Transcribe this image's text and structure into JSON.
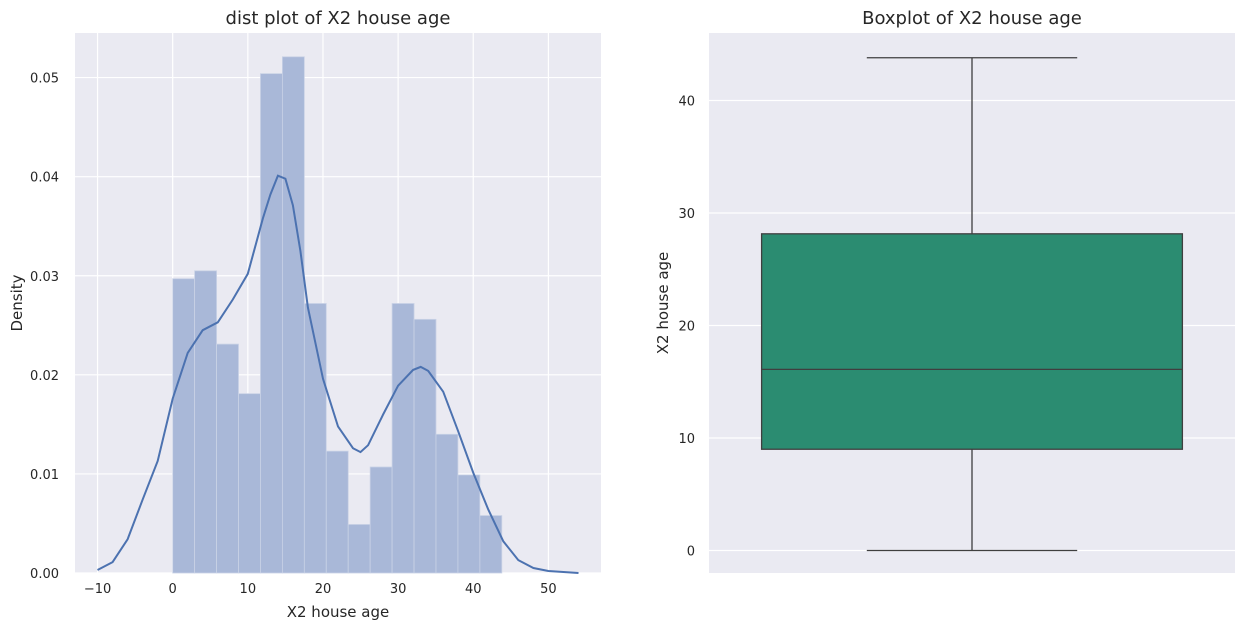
{
  "chart_data": [
    {
      "type": "histogram",
      "title": "dist plot of X2 house age",
      "xlabel": "X2 house age",
      "ylabel": "Density",
      "xlim": [
        -13,
        57
      ],
      "ylim": [
        0,
        0.0545
      ],
      "xticks": [
        -10,
        0,
        10,
        20,
        30,
        40,
        50
      ],
      "yticks": [
        0.0,
        0.01,
        0.02,
        0.03,
        0.04,
        0.05
      ],
      "ytick_labels": [
        "0.00",
        "0.01",
        "0.02",
        "0.03",
        "0.04",
        "0.05"
      ],
      "xtick_labels": [
        "−10",
        "0",
        "10",
        "20",
        "30",
        "40",
        "50"
      ],
      "grid": true,
      "bar_color": "#a9b8d8",
      "kde_color": "#4c72b0",
      "bins": [
        {
          "x0": 0.0,
          "x1": 2.92,
          "density": 0.0297
        },
        {
          "x0": 2.92,
          "x1": 5.84,
          "density": 0.0305
        },
        {
          "x0": 5.84,
          "x1": 8.76,
          "density": 0.0231
        },
        {
          "x0": 8.76,
          "x1": 11.68,
          "density": 0.0181
        },
        {
          "x0": 11.68,
          "x1": 14.6,
          "density": 0.0504
        },
        {
          "x0": 14.6,
          "x1": 17.52,
          "density": 0.0521
        },
        {
          "x0": 17.52,
          "x1": 20.44,
          "density": 0.0272
        },
        {
          "x0": 20.44,
          "x1": 23.36,
          "density": 0.0123
        },
        {
          "x0": 23.36,
          "x1": 26.28,
          "density": 0.0049
        },
        {
          "x0": 26.28,
          "x1": 29.2,
          "density": 0.0107
        },
        {
          "x0": 29.2,
          "x1": 32.12,
          "density": 0.0272
        },
        {
          "x0": 32.12,
          "x1": 35.04,
          "density": 0.0256
        },
        {
          "x0": 35.04,
          "x1": 37.96,
          "density": 0.014
        },
        {
          "x0": 37.96,
          "x1": 40.88,
          "density": 0.0099
        },
        {
          "x0": 40.88,
          "x1": 43.8,
          "density": 0.0058
        }
      ],
      "kde": {
        "x": [
          -10,
          -8,
          -6,
          -4,
          -2,
          0,
          2,
          4,
          6,
          8,
          10,
          12,
          13,
          14,
          15,
          16,
          17,
          18,
          20,
          22,
          24,
          25,
          26,
          28,
          30,
          32,
          33,
          34,
          36,
          38,
          40,
          42,
          44,
          46,
          48,
          50,
          52,
          54
        ],
        "y": [
          0.0003,
          0.0011,
          0.0034,
          0.0074,
          0.0113,
          0.0176,
          0.0222,
          0.0245,
          0.0253,
          0.0276,
          0.0302,
          0.0358,
          0.0382,
          0.0401,
          0.0398,
          0.0371,
          0.0325,
          0.0268,
          0.0196,
          0.0148,
          0.0126,
          0.0122,
          0.0129,
          0.016,
          0.0189,
          0.0205,
          0.0208,
          0.0204,
          0.0183,
          0.0143,
          0.0101,
          0.0064,
          0.0032,
          0.0013,
          0.0005,
          0.0002,
          0.0001,
          0.0
        ]
      }
    },
    {
      "type": "boxplot",
      "title": "Boxplot of X2 house age",
      "xlabel": "",
      "ylabel": "X2 house age",
      "ylim": [
        -2,
        46
      ],
      "yticks": [
        0,
        10,
        20,
        30,
        40
      ],
      "ytick_labels": [
        "0",
        "10",
        "20",
        "30",
        "40"
      ],
      "grid": true,
      "box_color": "#2b8c71",
      "stats": {
        "min": 0,
        "q1": 9.0,
        "median": 16.1,
        "q3": 28.15,
        "max": 43.8
      }
    }
  ]
}
